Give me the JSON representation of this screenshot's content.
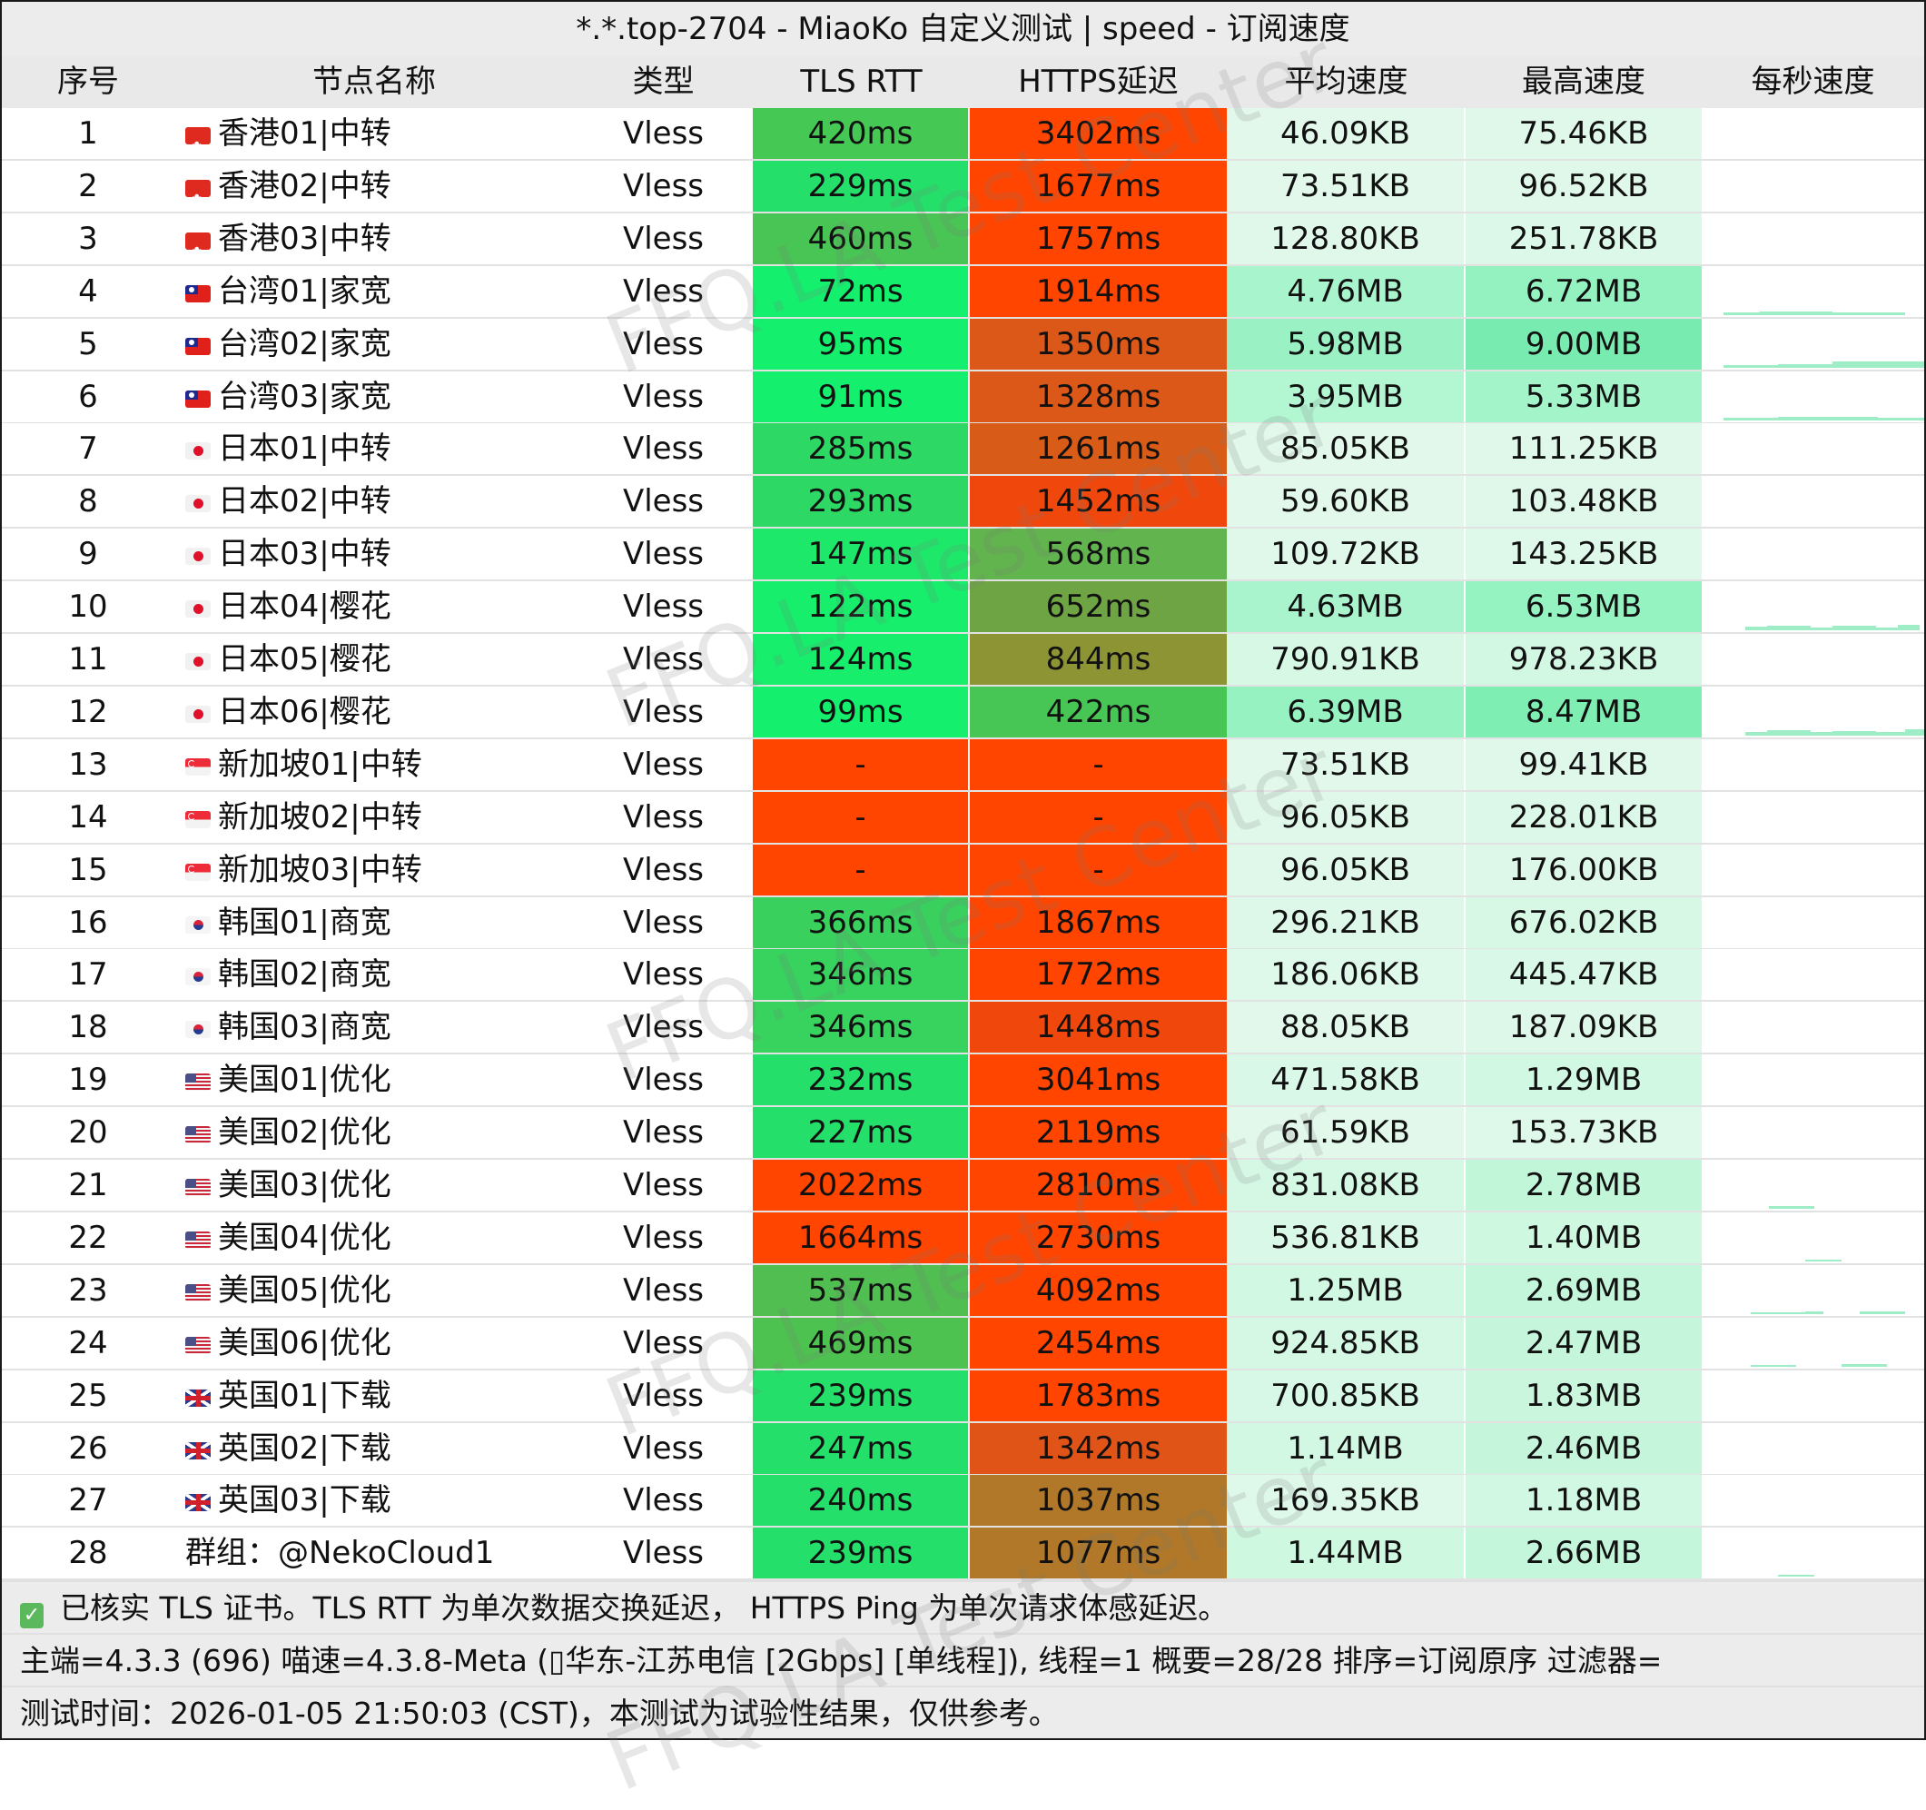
{
  "title": "*.*.top-2704 - MiaoKo 自定义测试 | speed - 订阅速度",
  "columns": [
    "序号",
    "节点名称",
    "类型",
    "TLS RTT",
    "HTTPS延迟",
    "平均速度",
    "最高速度",
    "每秒速度"
  ],
  "rows": [
    {
      "idx": "1",
      "flag": "hk",
      "name": "香港01|中转",
      "type": "Vless",
      "tls": "420ms",
      "https": "3402ms",
      "avg": "46.09KB",
      "max": "75.46KB",
      "tls_color": "#46c854",
      "https_color": "#ff4500",
      "avg_color": "#e2f8eb",
      "max_color": "#e0f8ea",
      "spark": []
    },
    {
      "idx": "2",
      "flag": "hk",
      "name": "香港02|中转",
      "type": "Vless",
      "tls": "229ms",
      "https": "1677ms",
      "avg": "73.51KB",
      "max": "96.52KB",
      "tls_color": "#24e06a",
      "https_color": "#ff4500",
      "avg_color": "#e1f8ea",
      "max_color": "#e0f8ea",
      "spark": []
    },
    {
      "idx": "3",
      "flag": "hk",
      "name": "香港03|中转",
      "type": "Vless",
      "tls": "460ms",
      "https": "1757ms",
      "avg": "128.80KB",
      "max": "251.78KB",
      "tls_color": "#48c554",
      "https_color": "#ff4500",
      "avg_color": "#e0f8ea",
      "max_color": "#dcf8e8",
      "spark": []
    },
    {
      "idx": "4",
      "flag": "tw",
      "name": "台湾01|家宽",
      "type": "Vless",
      "tls": "72ms",
      "https": "1914ms",
      "avg": "4.76MB",
      "max": "6.72MB",
      "tls_color": "#14f06e",
      "https_color": "#ff4500",
      "avg_color": "#a8f4cc",
      "max_color": "#93f2c0",
      "spark": [
        [
          0,
          40,
          3
        ],
        [
          40,
          120,
          4
        ],
        [
          120,
          200,
          3
        ]
      ]
    },
    {
      "idx": "5",
      "flag": "tw",
      "name": "台湾02|家宽",
      "type": "Vless",
      "tls": "95ms",
      "https": "1350ms",
      "avg": "5.98MB",
      "max": "9.00MB",
      "tls_color": "#14f06e",
      "https_color": "#dc5818",
      "avg_color": "#9af2c4",
      "max_color": "#78ecb0",
      "spark": [
        [
          0,
          60,
          3
        ],
        [
          60,
          120,
          4
        ],
        [
          120,
          221,
          7
        ]
      ]
    },
    {
      "idx": "6",
      "flag": "tw",
      "name": "台湾03|家宽",
      "type": "Vless",
      "tls": "91ms",
      "https": "1328ms",
      "avg": "3.95MB",
      "max": "5.33MB",
      "tls_color": "#14f06e",
      "https_color": "#dc5818",
      "avg_color": "#b2f6d2",
      "max_color": "#a4f4ca",
      "spark": [
        [
          0,
          60,
          3
        ],
        [
          60,
          170,
          4
        ],
        [
          170,
          221,
          3
        ]
      ]
    },
    {
      "idx": "7",
      "flag": "jp",
      "name": "日本01|中转",
      "type": "Vless",
      "tls": "285ms",
      "https": "1261ms",
      "avg": "85.05KB",
      "max": "111.25KB",
      "tls_color": "#2ed864",
      "https_color": "#d85c18",
      "avg_color": "#e1f8ea",
      "max_color": "#dff8e9",
      "spark": []
    },
    {
      "idx": "8",
      "flag": "jp",
      "name": "日本02|中转",
      "type": "Vless",
      "tls": "293ms",
      "https": "1452ms",
      "avg": "59.60KB",
      "max": "103.48KB",
      "tls_color": "#2ed864",
      "https_color": "#f0480c",
      "avg_color": "#e2f8eb",
      "max_color": "#dff8e9",
      "spark": []
    },
    {
      "idx": "9",
      "flag": "jp",
      "name": "日本03|中转",
      "type": "Vless",
      "tls": "147ms",
      "https": "568ms",
      "avg": "109.72KB",
      "max": "143.25KB",
      "tls_color": "#1ee86a",
      "https_color": "#62b44e",
      "avg_color": "#e0f8ea",
      "max_color": "#def8e9",
      "spark": []
    },
    {
      "idx": "10",
      "flag": "jp",
      "name": "日本04|樱花",
      "type": "Vless",
      "tls": "122ms",
      "https": "652ms",
      "avg": "4.63MB",
      "max": "6.53MB",
      "tls_color": "#16ee6c",
      "https_color": "#6ea444",
      "avg_color": "#aaf4cd",
      "max_color": "#95f2c1",
      "spark": [
        [
          24,
          48,
          4
        ],
        [
          48,
          96,
          5
        ],
        [
          96,
          120,
          3
        ],
        [
          120,
          168,
          5
        ],
        [
          168,
          192,
          3
        ],
        [
          192,
          216,
          6
        ]
      ]
    },
    {
      "idx": "11",
      "flag": "jp",
      "name": "日本05|樱花",
      "type": "Vless",
      "tls": "124ms",
      "https": "844ms",
      "avg": "790.91KB",
      "max": "978.23KB",
      "tls_color": "#16ee6c",
      "https_color": "#8c9434",
      "avg_color": "#d6f8e5",
      "max_color": "#d2f8e3",
      "spark": []
    },
    {
      "idx": "12",
      "flag": "jp",
      "name": "日本06|樱花",
      "type": "Vless",
      "tls": "99ms",
      "https": "422ms",
      "avg": "6.39MB",
      "max": "8.47MB",
      "tls_color": "#14f06e",
      "https_color": "#48c655",
      "avg_color": "#97f2c2",
      "max_color": "#7eeeb3",
      "spark": [
        [
          24,
          48,
          4
        ],
        [
          48,
          96,
          6
        ],
        [
          96,
          120,
          4
        ],
        [
          120,
          168,
          5
        ],
        [
          168,
          200,
          4
        ],
        [
          200,
          221,
          7
        ]
      ]
    },
    {
      "idx": "13",
      "flag": "sg",
      "name": "新加坡01|中转",
      "type": "Vless",
      "tls": "-",
      "https": "-",
      "avg": "73.51KB",
      "max": "99.41KB",
      "tls_color": "#ff4500",
      "https_color": "#ff4500",
      "avg_color": "#e1f8ea",
      "max_color": "#e0f8ea",
      "spark": []
    },
    {
      "idx": "14",
      "flag": "sg",
      "name": "新加坡02|中转",
      "type": "Vless",
      "tls": "-",
      "https": "-",
      "avg": "96.05KB",
      "max": "228.01KB",
      "tls_color": "#ff4500",
      "https_color": "#ff4500",
      "avg_color": "#e0f8ea",
      "max_color": "#dcf8e8",
      "spark": []
    },
    {
      "idx": "15",
      "flag": "sg",
      "name": "新加坡03|中转",
      "type": "Vless",
      "tls": "-",
      "https": "-",
      "avg": "96.05KB",
      "max": "176.00KB",
      "tls_color": "#ff4500",
      "https_color": "#ff4500",
      "avg_color": "#e0f8ea",
      "max_color": "#ddf8e9",
      "spark": []
    },
    {
      "idx": "16",
      "flag": "kr",
      "name": "韩国01|商宽",
      "type": "Vless",
      "tls": "366ms",
      "https": "1867ms",
      "avg": "296.21KB",
      "max": "676.02KB",
      "tls_color": "#3ad05e",
      "https_color": "#ff4500",
      "avg_color": "#ddf8e8",
      "max_color": "#d6f8e5",
      "spark": []
    },
    {
      "idx": "17",
      "flag": "kr",
      "name": "韩国02|商宽",
      "type": "Vless",
      "tls": "346ms",
      "https": "1772ms",
      "avg": "186.06KB",
      "max": "445.47KB",
      "tls_color": "#38d25e",
      "https_color": "#ff4500",
      "avg_color": "#def8e9",
      "max_color": "#d9f8e7",
      "spark": []
    },
    {
      "idx": "18",
      "flag": "kr",
      "name": "韩国03|商宽",
      "type": "Vless",
      "tls": "346ms",
      "https": "1448ms",
      "avg": "88.05KB",
      "max": "187.09KB",
      "tls_color": "#38d25e",
      "https_color": "#f0480c",
      "avg_color": "#e1f8ea",
      "max_color": "#ddf8e8",
      "spark": []
    },
    {
      "idx": "19",
      "flag": "us",
      "name": "美国01|优化",
      "type": "Vless",
      "tls": "232ms",
      "https": "3041ms",
      "avg": "471.58KB",
      "max": "1.29MB",
      "tls_color": "#24e06a",
      "https_color": "#ff4500",
      "avg_color": "#daf8e7",
      "max_color": "#d0f8e2",
      "spark": []
    },
    {
      "idx": "20",
      "flag": "us",
      "name": "美国02|优化",
      "type": "Vless",
      "tls": "227ms",
      "https": "2119ms",
      "avg": "61.59KB",
      "max": "153.73KB",
      "tls_color": "#24e06a",
      "https_color": "#ff4500",
      "avg_color": "#e2f8eb",
      "max_color": "#def8e9",
      "spark": []
    },
    {
      "idx": "21",
      "flag": "us",
      "name": "美国03|优化",
      "type": "Vless",
      "tls": "2022ms",
      "https": "2810ms",
      "avg": "831.08KB",
      "max": "2.78MB",
      "tls_color": "#ff4500",
      "https_color": "#ff4500",
      "avg_color": "#d5f8e5",
      "max_color": "#c2f6d9",
      "spark": [
        [
          50,
          100,
          3
        ]
      ]
    },
    {
      "idx": "22",
      "flag": "us",
      "name": "美国04|优化",
      "type": "Vless",
      "tls": "1664ms",
      "https": "2730ms",
      "avg": "536.81KB",
      "max": "1.40MB",
      "tls_color": "#ff4500",
      "https_color": "#ff4500",
      "avg_color": "#d9f8e7",
      "max_color": "#cff8e1",
      "spark": [
        [
          90,
          130,
          2
        ]
      ]
    },
    {
      "idx": "23",
      "flag": "us",
      "name": "美国05|优化",
      "type": "Vless",
      "tls": "537ms",
      "https": "4092ms",
      "avg": "1.25MB",
      "max": "2.69MB",
      "tls_color": "#50be50",
      "https_color": "#ff4500",
      "avg_color": "#d1f8e2",
      "max_color": "#c3f6da",
      "spark": [
        [
          30,
          90,
          2
        ],
        [
          90,
          110,
          3
        ],
        [
          150,
          200,
          3
        ]
      ]
    },
    {
      "idx": "24",
      "flag": "us",
      "name": "美国06|优化",
      "type": "Vless",
      "tls": "469ms",
      "https": "2454ms",
      "avg": "924.85KB",
      "max": "2.47MB",
      "tls_color": "#4ec250",
      "https_color": "#ff4500",
      "avg_color": "#d4f8e4",
      "max_color": "#c5f6db",
      "spark": [
        [
          30,
          80,
          2
        ],
        [
          130,
          180,
          3
        ]
      ]
    },
    {
      "idx": "25",
      "flag": "uk",
      "name": "英国01|下载",
      "type": "Vless",
      "tls": "239ms",
      "https": "1783ms",
      "avg": "700.85KB",
      "max": "1.83MB",
      "tls_color": "#24e06a",
      "https_color": "#ff4500",
      "avg_color": "#d7f8e6",
      "max_color": "#cbf6de",
      "spark": []
    },
    {
      "idx": "26",
      "flag": "uk",
      "name": "英国02|下载",
      "type": "Vless",
      "tls": "247ms",
      "https": "1342ms",
      "avg": "1.14MB",
      "max": "2.46MB",
      "tls_color": "#24e06a",
      "https_color": "#e05418",
      "avg_color": "#d2f8e3",
      "max_color": "#c5f6db",
      "spark": []
    },
    {
      "idx": "27",
      "flag": "uk",
      "name": "英国03|下载",
      "type": "Vless",
      "tls": "240ms",
      "https": "1037ms",
      "avg": "169.35KB",
      "max": "1.18MB",
      "tls_color": "#24e06a",
      "https_color": "#b07828",
      "avg_color": "#def8e9",
      "max_color": "#d1f8e2",
      "spark": []
    },
    {
      "idx": "28",
      "flag": "",
      "name": "群组：@NekoCloud1",
      "type": "Vless",
      "tls": "239ms",
      "https": "1077ms",
      "avg": "1.44MB",
      "max": "2.66MB",
      "tls_color": "#24e06a",
      "https_color": "#b07828",
      "avg_color": "#cff8e1",
      "max_color": "#c3f6da",
      "spark": [
        [
          60,
          100,
          2
        ]
      ]
    }
  ],
  "footer": {
    "line1": "已核实 TLS 证书。TLS RTT 为单次数据交换延迟， HTTPS Ping 为单次请求体感延迟。",
    "line2": "主端=4.3.3 (696) 喵速=4.3.8-Meta (▯华东-江苏电信 [2Gbps] [单线程]), 线程=1 概要=28/28 排序=订阅原序 过滤器=",
    "line3": "测试时间：2026-01-05 21:50:03 (CST)，本测试为试验性结果，仅供参考。",
    "check_icon": "✓"
  },
  "watermark": "FFQ.LA Test Center",
  "colors": {
    "title_bg": "#ececec",
    "header_bg": "#e9e9e9",
    "bad_red": "#ff4500",
    "good_green": "#14f06e",
    "sparkline": "#8eeabd"
  }
}
